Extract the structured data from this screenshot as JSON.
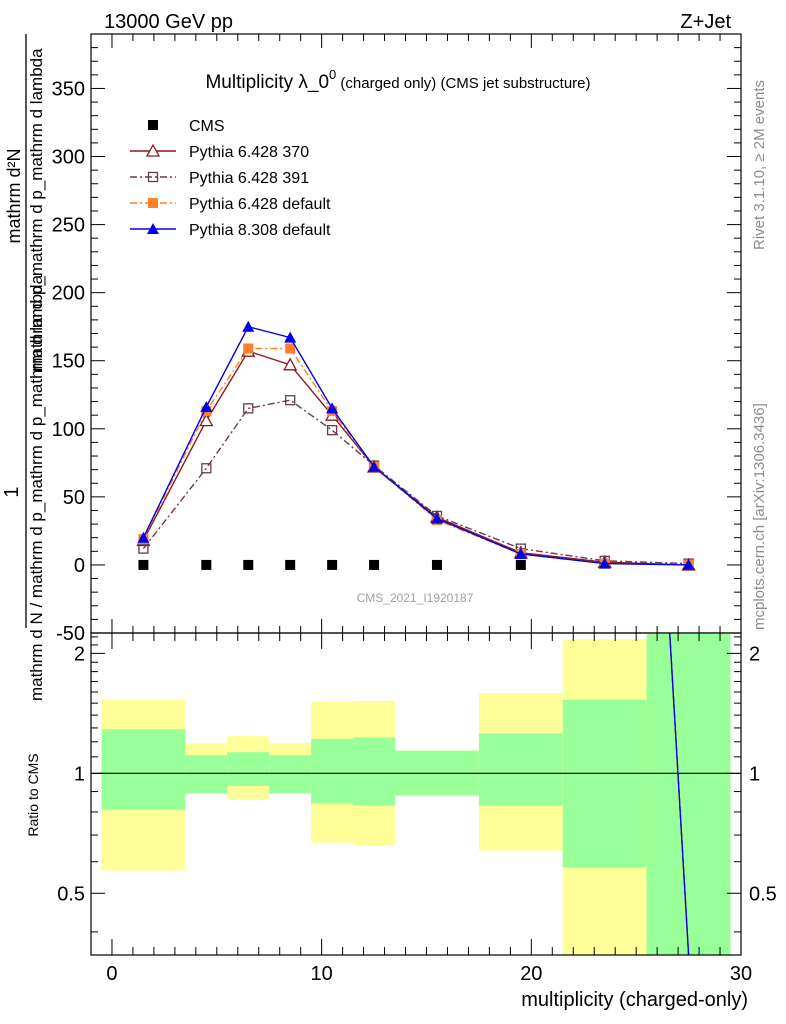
{
  "header": {
    "left": "13000 GeV pp",
    "right": "Z+Jet"
  },
  "side_labels": {
    "rivet": "Rivet 3.1.10, ≥ 2M events",
    "mcplots": "mcplots.cern.ch [arXiv:1306.3436]"
  },
  "chart_data": [
    {
      "type": "scatter",
      "title": "Multiplicity λ_0",
      "title_superscript": "0",
      "title_suffix": " (charged only) (CMS jet substructure)",
      "ylabel_numerator": "1",
      "ylabel_denominator": "mathrm d N / mathrm d p_mathrm d p_mathrm d lambda",
      "ylabel_right": "mathrm d²N",
      "ylabel_right_denominator": "mathrm d p_mathrm d p_mathrm d lambda",
      "ylim": [
        -50,
        390
      ],
      "yticks": [
        -50,
        0,
        50,
        100,
        150,
        200,
        250,
        300,
        350
      ],
      "xlim": [
        -1,
        30
      ],
      "watermark": "CMS_2021_I1920187",
      "legend_position": "top-left",
      "series": [
        {
          "name": "CMS",
          "color": "#000000",
          "marker": "square-filled",
          "line": "none",
          "x": [
            1.5,
            4.5,
            6.5,
            8.5,
            10.5,
            12.5,
            15.5,
            19.5
          ],
          "y": [
            0,
            0,
            0,
            0,
            0,
            0,
            0,
            0
          ]
        },
        {
          "name": "Pythia 6.428 370",
          "color": "#8b1a1a",
          "marker": "triangle-open",
          "line": "solid",
          "x": [
            1.5,
            4.5,
            6.5,
            8.5,
            10.5,
            12.5,
            15.5,
            19.5,
            23.5,
            27.5
          ],
          "y": [
            18,
            106,
            157,
            147,
            110,
            72,
            35,
            9,
            2,
            0
          ]
        },
        {
          "name": "Pythia 6.428 391",
          "color": "#6b3a4a",
          "marker": "square-open",
          "line": "dashdot",
          "x": [
            1.5,
            4.5,
            6.5,
            8.5,
            10.5,
            12.5,
            15.5,
            19.5,
            23.5,
            27.5
          ],
          "y": [
            12,
            71,
            115,
            121,
            99,
            73,
            36,
            12,
            3,
            1
          ]
        },
        {
          "name": "Pythia 6.428 default",
          "color": "#ff7f2a",
          "marker": "square-filled",
          "line": "dashdot",
          "x": [
            1.5,
            4.5,
            6.5,
            8.5,
            10.5,
            12.5,
            15.5,
            19.5,
            23.5,
            27.5
          ],
          "y": [
            19,
            113,
            159,
            159,
            113,
            72,
            33,
            8,
            1,
            0
          ]
        },
        {
          "name": "Pythia 8.308 default",
          "color": "#0000ee",
          "marker": "triangle-filled",
          "line": "solid",
          "x": [
            1.5,
            4.5,
            6.5,
            8.5,
            10.5,
            12.5,
            15.5,
            19.5,
            23.5,
            27.5
          ],
          "y": [
            20,
            116,
            175,
            167,
            115,
            72,
            34,
            8,
            1,
            0
          ]
        }
      ]
    },
    {
      "type": "area",
      "ylabel": "Ratio to CMS",
      "xlabel": "multiplicity (charged-only)",
      "ylim": [
        0.35,
        2.25
      ],
      "yticks": [
        0.5,
        1,
        2
      ],
      "xlim": [
        -1,
        30
      ],
      "xticks": [
        0,
        10,
        20,
        30
      ],
      "reference_line": 1,
      "band_colors": {
        "outer": "#ffff99",
        "inner": "#99ff99"
      },
      "bins": [
        {
          "x": [
            -0.5,
            3.5
          ],
          "outer": [
            0.57,
            1.53
          ],
          "inner": [
            0.81,
            1.29
          ]
        },
        {
          "x": [
            3.5,
            5.5
          ],
          "outer": [
            0.89,
            1.19
          ],
          "inner": [
            0.89,
            1.11
          ]
        },
        {
          "x": [
            5.5,
            7.5
          ],
          "outer": [
            0.86,
            1.24
          ],
          "inner": [
            0.93,
            1.13
          ]
        },
        {
          "x": [
            7.5,
            9.5
          ],
          "outer": [
            0.89,
            1.19
          ],
          "inner": [
            0.89,
            1.11
          ]
        },
        {
          "x": [
            9.5,
            11.5
          ],
          "outer": [
            0.67,
            1.51
          ],
          "inner": [
            0.84,
            1.22
          ]
        },
        {
          "x": [
            11.5,
            13.5
          ],
          "outer": [
            0.66,
            1.52
          ],
          "inner": [
            0.83,
            1.23
          ]
        },
        {
          "x": [
            13.5,
            17.5
          ],
          "outer": [
            0.88,
            1.14
          ],
          "inner": [
            0.88,
            1.14
          ]
        },
        {
          "x": [
            17.5,
            21.5
          ],
          "outer": [
            0.64,
            1.59
          ],
          "inner": [
            0.83,
            1.26
          ]
        },
        {
          "x": [
            21.5,
            25.5
          ],
          "outer": [
            0.35,
            2.17
          ],
          "inner": [
            0.58,
            1.53
          ]
        },
        {
          "x": [
            25.5,
            29.5
          ],
          "outer": [
            0.35,
            2.25
          ],
          "inner": [
            0.35,
            2.25
          ]
        }
      ],
      "ratio_series": [
        {
          "name": "Pythia 6.428 370",
          "color": "#8b1a1a",
          "x": [
            26.6,
            27.5
          ],
          "y": [
            2.25,
            0.35
          ]
        },
        {
          "name": "Pythia 6.428 391",
          "color": "#6b3a4a",
          "x": [
            26.6,
            27.5
          ],
          "y": [
            2.25,
            0.35
          ]
        },
        {
          "name": "Pythia 6.428 default",
          "color": "#ff7f2a",
          "x": [
            26.6,
            27.5
          ],
          "y": [
            2.25,
            0.35
          ]
        },
        {
          "name": "Pythia 8.308 default",
          "color": "#0000ee",
          "x": [
            26.6,
            27.5
          ],
          "y": [
            2.25,
            0.35
          ]
        }
      ]
    }
  ]
}
